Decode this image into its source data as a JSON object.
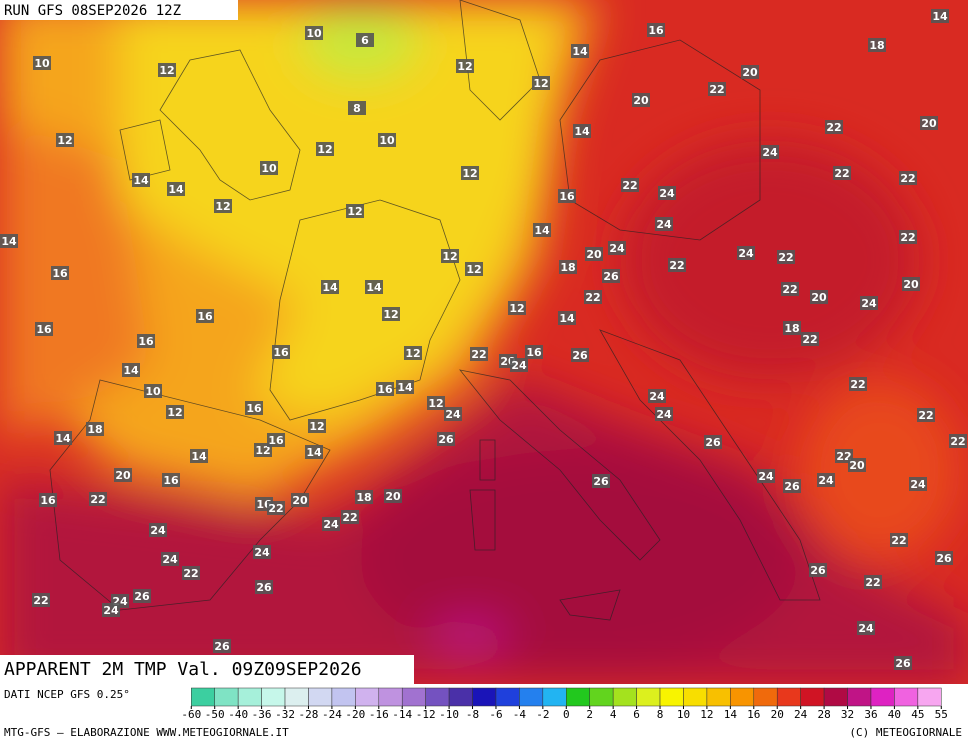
{
  "header": {
    "run": "RUN GFS 08SEP2026 12Z"
  },
  "map": {
    "title": "APPARENT 2M TMP Val. 09Z09SEP2026",
    "labels": [
      10,
      12,
      10,
      6,
      8,
      12,
      14,
      12,
      16,
      14,
      18,
      20,
      20,
      22,
      12,
      12,
      10,
      14,
      22,
      20,
      14,
      14,
      10,
      12,
      24,
      22,
      24,
      22,
      22,
      12,
      12,
      16,
      14,
      14,
      24,
      22,
      16,
      12,
      12,
      20,
      24,
      24,
      22,
      18,
      26,
      22,
      14,
      14,
      20,
      22,
      22,
      20,
      24,
      16,
      16,
      12,
      12,
      14,
      16,
      16,
      18,
      22,
      12,
      22,
      20,
      24,
      16,
      26,
      14,
      10,
      16,
      14,
      22,
      12,
      16,
      12,
      24,
      24,
      24,
      22,
      14,
      18,
      12,
      12,
      16,
      14,
      26,
      26,
      22,
      14,
      22,
      20,
      20,
      16,
      24,
      26,
      24,
      24,
      26,
      16,
      22,
      16,
      22,
      20,
      18,
      20,
      22,
      24,
      24,
      22,
      26,
      24,
      24,
      22,
      26,
      22,
      26,
      22,
      26,
      24,
      24,
      24,
      26,
      26
    ]
  },
  "footer": {
    "source": "DATI NCEP GFS 0.25°",
    "credit": "MTG-GFS — ELABORAZIONE WWW.METEOGIORNALE.IT",
    "copyright": "(C) METEOGIORNALE"
  },
  "colorbar": {
    "ticks": [
      -60,
      -50,
      -40,
      -36,
      -32,
      -28,
      -24,
      -20,
      -16,
      -14,
      -12,
      -10,
      -8,
      -6,
      -4,
      -2,
      0,
      2,
      4,
      6,
      8,
      10,
      12,
      14,
      16,
      20,
      24,
      28,
      32,
      36,
      40,
      45,
      55
    ],
    "colors": [
      "#3ccfa0",
      "#7fe3c4",
      "#a6f0da",
      "#c6f7ea",
      "#dcefef",
      "#d2d8f2",
      "#c2c4f0",
      "#d0b2ee",
      "#bf92e0",
      "#a172d0",
      "#7452c0",
      "#4a30a8",
      "#1a14b8",
      "#1f40dc",
      "#2480ee",
      "#22b4f2",
      "#22c81e",
      "#62d41e",
      "#a4e21e",
      "#dcf01e",
      "#f8f400",
      "#f8de00",
      "#f8c000",
      "#f89400",
      "#f06a0c",
      "#e8381c",
      "#d01424",
      "#b00a44",
      "#c01486",
      "#de22c2",
      "#f062e0",
      "#f7a6f0"
    ]
  }
}
